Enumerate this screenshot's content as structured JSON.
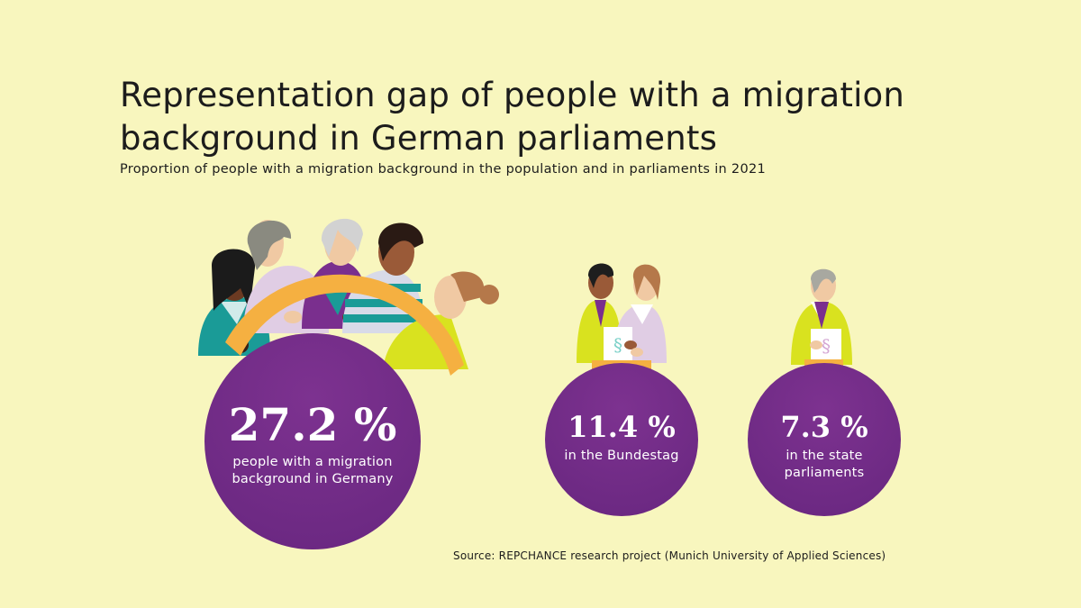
{
  "header": {
    "title": "Representation gap of people with a migration background in German parliaments",
    "subtitle": "Proportion of people with a migration background in the population and in parliaments in 2021"
  },
  "stats": [
    {
      "value": "27.2 %",
      "label_line1": "people with a migration",
      "label_line2": "background in Germany"
    },
    {
      "value": "11.4 %",
      "label_line1": "in the Bundestag",
      "label_line2": ""
    },
    {
      "value": "7.3 %",
      "label_line1": "in the state",
      "label_line2": "parliaments"
    }
  ],
  "source": "Source: REPCHANCE research project (Munich University of Applied Sciences)",
  "colors": {
    "background": "#f8f6be",
    "circle": "#6e2a84",
    "arc": "#f5b041",
    "accent_green": "#d9e21f",
    "accent_teal": "#1a9b97"
  },
  "icons": [
    "population-group-illustration",
    "bundestag-members-illustration",
    "state-parliament-member-illustration",
    "paragraph-document-icon"
  ]
}
